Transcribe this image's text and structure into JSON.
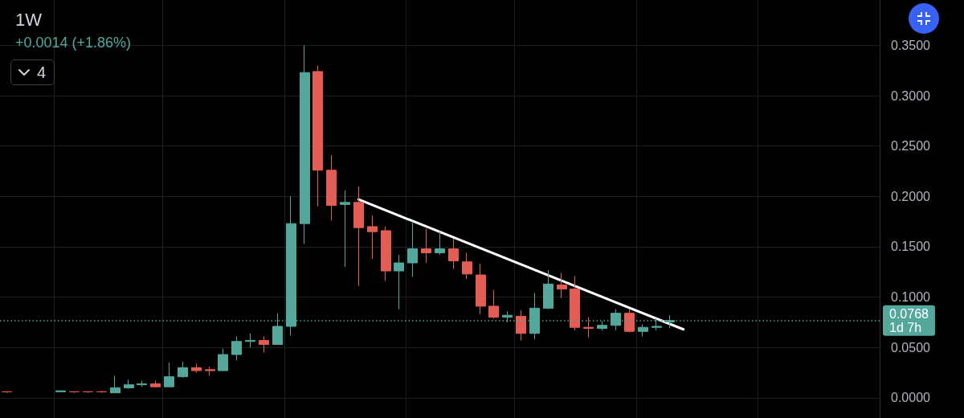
{
  "chart_data": {
    "type": "candlestick",
    "title": "1W",
    "subtitle": "+0.0014 (+1.86%)",
    "categories": [
      null,
      null,
      null,
      null,
      null,
      null,
      null,
      null,
      null,
      null,
      null,
      null,
      null,
      null,
      null,
      null,
      null,
      null,
      null,
      null,
      null,
      null,
      null,
      null,
      null,
      null,
      null,
      null,
      null,
      null,
      null,
      null,
      null,
      null,
      null,
      null,
      null,
      null,
      null,
      null,
      null,
      null,
      null,
      null,
      null,
      null,
      null,
      null,
      null,
      null,
      null,
      null,
      null,
      null,
      null,
      null,
      null,
      null,
      null,
      null,
      null,
      null,
      null,
      null,
      null
    ],
    "ohlc": [
      [
        0.006,
        0.006,
        0.005,
        0.006
      ],
      null,
      null,
      null,
      [
        0.006,
        0.007,
        0.006,
        0.007
      ],
      [
        0.006,
        0.006,
        0.005,
        0.006
      ],
      [
        0.006,
        0.006,
        0.005,
        0.006
      ],
      [
        0.006,
        0.007,
        0.005,
        0.006
      ],
      [
        0.005,
        0.022,
        0.005,
        0.01
      ],
      [
        0.01,
        0.018,
        0.009,
        0.013
      ],
      [
        0.013,
        0.017,
        0.011,
        0.014
      ],
      [
        0.014,
        0.017,
        0.011,
        0.011
      ],
      [
        0.011,
        0.035,
        0.011,
        0.021
      ],
      [
        0.021,
        0.036,
        0.02,
        0.03
      ],
      [
        0.03,
        0.034,
        0.025,
        0.027
      ],
      [
        0.028,
        0.031,
        0.022,
        0.027
      ],
      [
        0.027,
        0.049,
        0.027,
        0.043
      ],
      [
        0.043,
        0.061,
        0.037,
        0.056
      ],
      [
        0.056,
        0.064,
        0.05,
        0.057
      ],
      [
        0.057,
        0.061,
        0.045,
        0.053
      ],
      [
        0.053,
        0.084,
        0.053,
        0.071
      ],
      [
        0.071,
        0.2,
        0.062,
        0.173
      ],
      [
        0.173,
        0.35,
        0.153,
        0.323
      ],
      [
        0.324,
        0.33,
        0.19,
        0.226
      ],
      [
        0.226,
        0.241,
        0.176,
        0.191
      ],
      [
        0.192,
        0.206,
        0.13,
        0.194
      ],
      [
        0.194,
        0.21,
        0.111,
        0.169
      ],
      [
        0.17,
        0.181,
        0.138,
        0.165
      ],
      [
        0.166,
        0.17,
        0.116,
        0.126
      ],
      [
        0.126,
        0.142,
        0.088,
        0.134
      ],
      [
        0.134,
        0.175,
        0.12,
        0.148
      ],
      [
        0.148,
        0.168,
        0.134,
        0.144
      ],
      [
        0.144,
        0.165,
        0.142,
        0.148
      ],
      [
        0.148,
        0.158,
        0.128,
        0.136
      ],
      [
        0.135,
        0.144,
        0.118,
        0.123
      ],
      [
        0.122,
        0.133,
        0.083,
        0.091
      ],
      [
        0.091,
        0.107,
        0.079,
        0.08
      ],
      [
        0.08,
        0.086,
        0.075,
        0.082
      ],
      [
        0.081,
        0.087,
        0.057,
        0.064
      ],
      [
        0.064,
        0.104,
        0.058,
        0.089
      ],
      [
        0.089,
        0.127,
        0.088,
        0.113
      ],
      [
        0.112,
        0.124,
        0.099,
        0.108
      ],
      [
        0.108,
        0.121,
        0.067,
        0.07
      ],
      [
        0.07,
        0.08,
        0.06,
        0.069
      ],
      [
        0.069,
        0.076,
        0.067,
        0.072
      ],
      [
        0.072,
        0.088,
        0.067,
        0.084
      ],
      [
        0.084,
        0.088,
        0.065,
        0.066
      ],
      [
        0.066,
        0.073,
        0.061,
        0.07
      ],
      [
        0.07,
        0.079,
        0.067,
        0.071
      ],
      [
        0.0754,
        0.082,
        0.069,
        0.0768
      ],
      null,
      null,
      null,
      null,
      null,
      null,
      null,
      null,
      null,
      null,
      null,
      null,
      null,
      null,
      null
    ],
    "colors": [
      "#e35d55",
      null,
      null,
      null,
      "#53a89b",
      "#e35d55",
      "#e35d55",
      "#e35d55",
      "#53a89b",
      "#53a89b",
      "#53a89b",
      "#e35d55",
      "#53a89b",
      "#53a89b",
      "#e35d55",
      "#e35d55",
      "#53a89b",
      "#53a89b",
      "#53a89b",
      "#e35d55",
      "#53a89b",
      "#53a89b",
      "#53a89b",
      "#e35d55",
      "#e35d55",
      "#53a89b",
      "#e35d55",
      "#e35d55",
      "#e35d55",
      "#53a89b",
      "#53a89b",
      "#e35d55",
      "#53a89b",
      "#e35d55",
      "#e35d55",
      "#e35d55",
      "#e35d55",
      "#53a89b",
      "#e35d55",
      "#53a89b",
      "#53a89b",
      "#e35d55",
      "#e35d55",
      "#e35d55",
      "#53a89b",
      "#53a89b",
      "#e35d55",
      "#53a89b",
      "#53a89b",
      "#53a89b",
      null,
      null,
      null,
      null,
      null,
      null,
      null,
      null,
      null,
      null,
      null,
      null,
      null,
      null,
      null
    ],
    "series": [
      {
        "type": "line",
        "color": "#ffffff",
        "line_style": "solid",
        "marker": "none",
        "values": [
          null,
          null,
          null,
          null,
          null,
          null,
          null,
          null,
          null,
          null,
          null,
          null,
          null,
          null,
          null,
          null,
          null,
          null,
          null,
          null,
          null,
          null,
          null,
          null,
          null,
          null,
          0.197,
          null,
          null,
          null,
          null,
          null,
          null,
          null,
          null,
          null,
          null,
          null,
          null,
          null,
          null,
          null,
          null,
          null,
          null,
          null,
          null,
          null,
          null,
          null,
          0.068,
          null,
          null,
          null,
          null,
          null,
          null,
          null,
          null,
          null,
          null,
          null,
          null,
          null,
          null
        ]
      }
    ],
    "ylim": [
      -0.02,
      0.395
    ],
    "yticks": [
      {
        "value": 0,
        "label": "0.0000"
      },
      {
        "value": 0.05,
        "label": "0.0500"
      },
      {
        "value": 0.1,
        "label": "0.1000"
      },
      {
        "value": 0.15,
        "label": "0.1500"
      },
      {
        "value": 0.2,
        "label": "0.2000"
      },
      {
        "value": 0.25,
        "label": "0.2500"
      },
      {
        "value": 0.3,
        "label": "0.3000"
      },
      {
        "value": 0.35,
        "label": "0.3500"
      }
    ],
    "ref_lines": [
      {
        "axis": "y",
        "value": 0.0768,
        "label": "0.0768",
        "color": "#53a89b",
        "line_style": "dotted"
      }
    ],
    "annotations": [
      "4",
      "1d 7h"
    ],
    "grid": true,
    "tick_labels": "y"
  }
}
